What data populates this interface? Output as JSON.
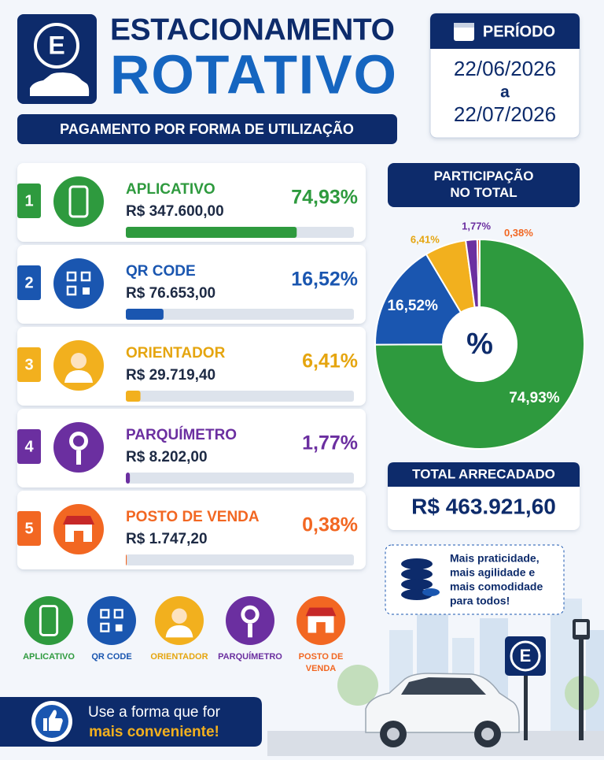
{
  "header": {
    "logo_letter": "E",
    "title_line1": "ESTACIONAMENTO",
    "title_line2": "ROTATIVO",
    "subtitle": "PAGAMENTO POR FORMA DE UTILIZAÇÃO"
  },
  "period": {
    "label": "PERÍODO",
    "start": "22/06/2026",
    "connector": "a",
    "end": "22/07/2026"
  },
  "items": [
    {
      "rank": "1",
      "amount": "R$  347.600,00"
    },
    {
      "rank": "2",
      "amount": "R$  76.653,00"
    },
    {
      "rank": "3",
      "amount": "R$  29.719,40"
    },
    {
      "rank": "4",
      "amount": "R$  8.202,00"
    },
    {
      "rank": "5",
      "amount": "R$  1.747,20"
    }
  ],
  "chart_data": {
    "type": "donut",
    "title": "PARTICIPAÇÃO NO TOTAL",
    "center_label": "%",
    "categories": [
      "APLICATIVO",
      "QR CODE",
      "ORIENTADOR",
      "PARQUÍMETRO",
      "POSTO DE VENDA"
    ],
    "values": [
      74.93,
      16.52,
      6.41,
      1.77,
      0.38
    ],
    "value_labels": [
      "74,93%",
      "16,52%",
      "6,41%",
      "1,77%",
      "0,38%"
    ],
    "colors": [
      "#2e9a3e",
      "#1a56b0",
      "#f2b01e",
      "#6b2fa0",
      "#f26722"
    ]
  },
  "total": {
    "label": "TOTAL ARRECADADO",
    "value": "R$ 463.921,60"
  },
  "note": {
    "lines": [
      "Mais praticidade,",
      "mais agilidade e",
      "mais comodidade",
      "para todos!"
    ]
  },
  "footer": {
    "line1": "Use a forma que for",
    "line2": "mais conveniente!"
  },
  "sign_letter": "E"
}
